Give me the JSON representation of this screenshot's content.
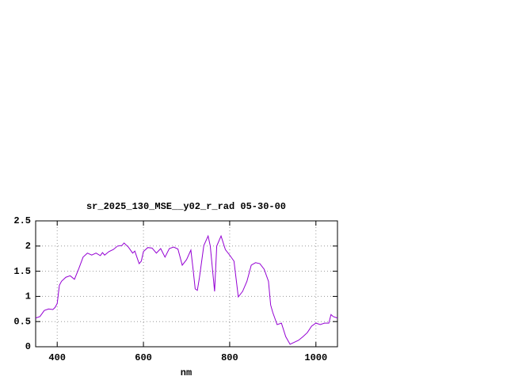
{
  "chart_data": {
    "type": "line",
    "title": "sr_2025_130_MSE__y02_r_rad 05-30-00",
    "x_label": "nm",
    "xlim": [
      350,
      1050
    ],
    "xticks": [
      400,
      600,
      800,
      1000
    ],
    "ylim": [
      0,
      2.5
    ],
    "yticks": [
      0,
      0.5,
      1,
      1.5,
      2,
      2.5
    ],
    "grid": true,
    "x": [
      350,
      360,
      370,
      380,
      390,
      395,
      400,
      405,
      410,
      420,
      430,
      440,
      450,
      460,
      470,
      480,
      490,
      500,
      505,
      510,
      520,
      530,
      540,
      550,
      555,
      565,
      575,
      580,
      590,
      595,
      600,
      610,
      620,
      630,
      640,
      650,
      660,
      670,
      680,
      690,
      700,
      710,
      715,
      720,
      725,
      730,
      740,
      750,
      755,
      765,
      770,
      780,
      790,
      800,
      810,
      820,
      830,
      840,
      850,
      860,
      870,
      880,
      890,
      895,
      900,
      910,
      920,
      930,
      940,
      950,
      960,
      970,
      980,
      990,
      1000,
      1010,
      1020,
      1030,
      1035,
      1040,
      1050
    ],
    "series": [
      {
        "name": "sr_2025_130_MSE__y02_r_rad",
        "color": "#9400d3",
        "values": [
          0.57,
          0.6,
          0.72,
          0.75,
          0.74,
          0.78,
          0.86,
          1.22,
          1.3,
          1.38,
          1.41,
          1.34,
          1.55,
          1.78,
          1.86,
          1.82,
          1.86,
          1.81,
          1.87,
          1.82,
          1.89,
          1.93,
          2.0,
          2.01,
          2.06,
          1.98,
          1.86,
          1.9,
          1.65,
          1.7,
          1.89,
          1.97,
          1.96,
          1.86,
          1.95,
          1.78,
          1.95,
          1.98,
          1.94,
          1.62,
          1.73,
          1.92,
          1.55,
          1.15,
          1.12,
          1.38,
          2.01,
          2.2,
          2.0,
          1.1,
          2.0,
          2.2,
          1.93,
          1.82,
          1.7,
          0.99,
          1.1,
          1.3,
          1.62,
          1.67,
          1.65,
          1.54,
          1.3,
          0.83,
          0.68,
          0.44,
          0.47,
          0.2,
          0.05,
          0.09,
          0.13,
          0.2,
          0.28,
          0.41,
          0.47,
          0.44,
          0.47,
          0.47,
          0.64,
          0.6,
          0.57
        ]
      }
    ]
  }
}
